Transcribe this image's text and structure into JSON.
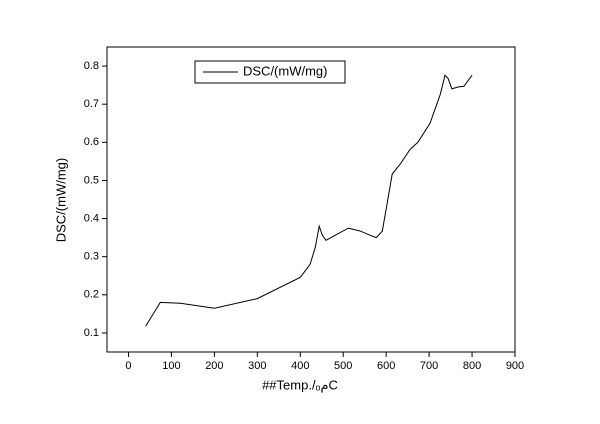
{
  "chart_data": {
    "type": "line",
    "y_label": "DSC/(mW/mg)",
    "x_label": "##Temp./ₒمC",
    "series": [
      {
        "name": "DSC/(mW/mg)",
        "color": "#000000",
        "x": [
          40,
          74,
          121,
          200,
          300,
          400,
          423,
          435,
          444,
          451,
          460,
          481,
          512,
          540,
          563,
          577,
          591,
          600,
          614,
          633,
          656,
          674,
          702,
          726,
          737,
          744,
          753,
          767,
          781,
          800
        ],
        "values": [
          0.118,
          0.18,
          0.178,
          0.165,
          0.19,
          0.246,
          0.28,
          0.325,
          0.38,
          0.357,
          0.343,
          0.356,
          0.375,
          0.367,
          0.356,
          0.35,
          0.367,
          0.425,
          0.517,
          0.543,
          0.582,
          0.6,
          0.65,
          0.726,
          0.776,
          0.768,
          0.74,
          0.745,
          0.747,
          0.776
        ]
      }
    ],
    "xlim": [
      -50,
      900
    ],
    "xticks": [
      0,
      100,
      200,
      300,
      400,
      500,
      600,
      700,
      800,
      900
    ],
    "ylim": [
      0.05,
      0.85
    ],
    "yticks": [
      0.1,
      0.2,
      0.3,
      0.4,
      0.5,
      0.6,
      0.7,
      0.8
    ],
    "legend": "upper-left"
  }
}
